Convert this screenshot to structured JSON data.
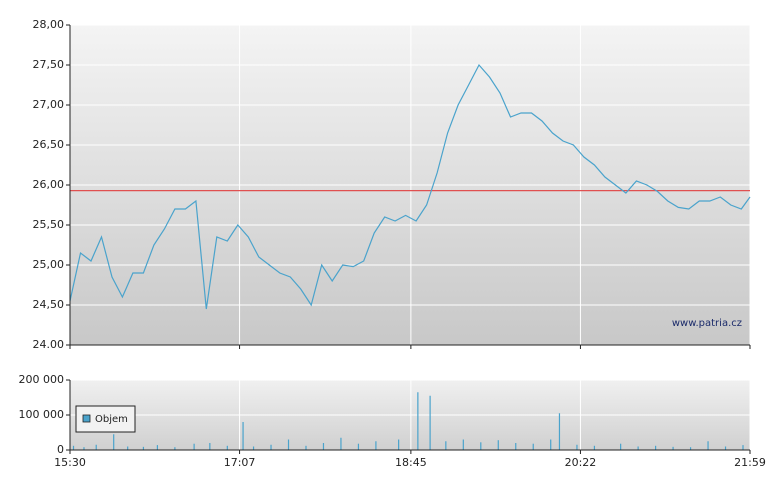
{
  "chart_data": [
    {
      "type": "line",
      "x": [
        "15:30",
        "15:36",
        "15:42",
        "15:48",
        "15:54",
        "16:00",
        "16:06",
        "16:12",
        "16:18",
        "16:24",
        "16:30",
        "16:36",
        "16:42",
        "16:48",
        "16:54",
        "17:00",
        "17:06",
        "17:12",
        "17:18",
        "17:24",
        "17:30",
        "17:36",
        "17:42",
        "17:48",
        "17:54",
        "18:00",
        "18:06",
        "18:12",
        "18:18",
        "18:24",
        "18:30",
        "18:36",
        "18:42",
        "18:48",
        "18:54",
        "19:00",
        "19:06",
        "19:12",
        "19:18",
        "19:24",
        "19:30",
        "19:36",
        "19:42",
        "19:48",
        "19:54",
        "20:00",
        "20:06",
        "20:12",
        "20:18",
        "20:24",
        "20:30",
        "20:36",
        "20:42",
        "20:48",
        "20:54",
        "21:00",
        "21:06",
        "21:12",
        "21:18",
        "21:24",
        "21:30",
        "21:36",
        "21:42",
        "21:48",
        "21:54",
        "21:59"
      ],
      "values": [
        24.55,
        25.15,
        25.05,
        25.35,
        24.85,
        24.6,
        24.9,
        24.9,
        25.25,
        25.45,
        25.7,
        25.7,
        25.8,
        24.45,
        25.35,
        25.3,
        25.5,
        25.35,
        25.1,
        25.0,
        24.9,
        24.85,
        24.7,
        24.5,
        25.0,
        24.8,
        25.0,
        24.98,
        25.05,
        25.4,
        25.6,
        25.55,
        25.62,
        25.55,
        25.75,
        26.15,
        26.65,
        27.0,
        27.25,
        27.5,
        27.35,
        27.15,
        26.85,
        26.9,
        26.9,
        26.8,
        26.65,
        26.55,
        26.5,
        26.35,
        26.25,
        26.1,
        26.0,
        25.9,
        26.05,
        26.0,
        25.92,
        25.8,
        25.72,
        25.7,
        25.8,
        25.8,
        25.85,
        25.75,
        25.7,
        25.85
      ],
      "color": "#4aa3cc",
      "xlim": [
        "15:30",
        "21:59"
      ],
      "ylim": [
        24,
        28
      ],
      "yticks": [
        {
          "value": 24,
          "label": "24.00"
        },
        {
          "value": 24.5,
          "label": "24,50"
        },
        {
          "value": 25,
          "label": "25,00"
        },
        {
          "value": 25.5,
          "label": "25,50"
        },
        {
          "value": 26,
          "label": "26,00"
        },
        {
          "value": 26.5,
          "label": "26,50"
        },
        {
          "value": 27,
          "label": "27,00"
        },
        {
          "value": 27.5,
          "label": "27,50"
        },
        {
          "value": 28,
          "label": "28,00"
        }
      ],
      "reference_line": 25.93,
      "reference_color": "#e05050",
      "watermark": "www.patria.cz",
      "grid": true
    },
    {
      "type": "bar",
      "x": [
        "15:32",
        "15:38",
        "15:45",
        "15:55",
        "16:03",
        "16:12",
        "16:20",
        "16:30",
        "16:41",
        "16:50",
        "17:00",
        "17:09",
        "17:15",
        "17:25",
        "17:35",
        "17:45",
        "17:55",
        "18:05",
        "18:15",
        "18:25",
        "18:38",
        "18:49",
        "18:56",
        "19:05",
        "19:15",
        "19:25",
        "19:35",
        "19:45",
        "19:55",
        "20:05",
        "20:10",
        "20:20",
        "20:30",
        "20:45",
        "20:55",
        "21:05",
        "21:15",
        "21:25",
        "21:35",
        "21:45",
        "21:55"
      ],
      "series": [
        {
          "name": "Objem",
          "color": "#4aa3cc",
          "values": [
            12000,
            8000,
            15000,
            45000,
            10000,
            9000,
            14000,
            8000,
            18000,
            20000,
            12000,
            80000,
            10000,
            15000,
            30000,
            12000,
            20000,
            35000,
            18000,
            25000,
            30000,
            165000,
            155000,
            25000,
            30000,
            22000,
            28000,
            20000,
            18000,
            30000,
            105000,
            15000,
            12000,
            18000,
            10000,
            12000,
            9000,
            8000,
            25000,
            10000,
            14000
          ]
        }
      ],
      "xlim": [
        "15:30",
        "21:59"
      ],
      "xticks": [
        "15:30",
        "17:07",
        "18:45",
        "20:22",
        "21:59"
      ],
      "ylim": [
        0,
        200000
      ],
      "yticks": [
        0,
        {
          "value": 100000,
          "label": "100 000"
        },
        {
          "value": 200000,
          "label": "200 000"
        }
      ],
      "grid": true
    }
  ]
}
